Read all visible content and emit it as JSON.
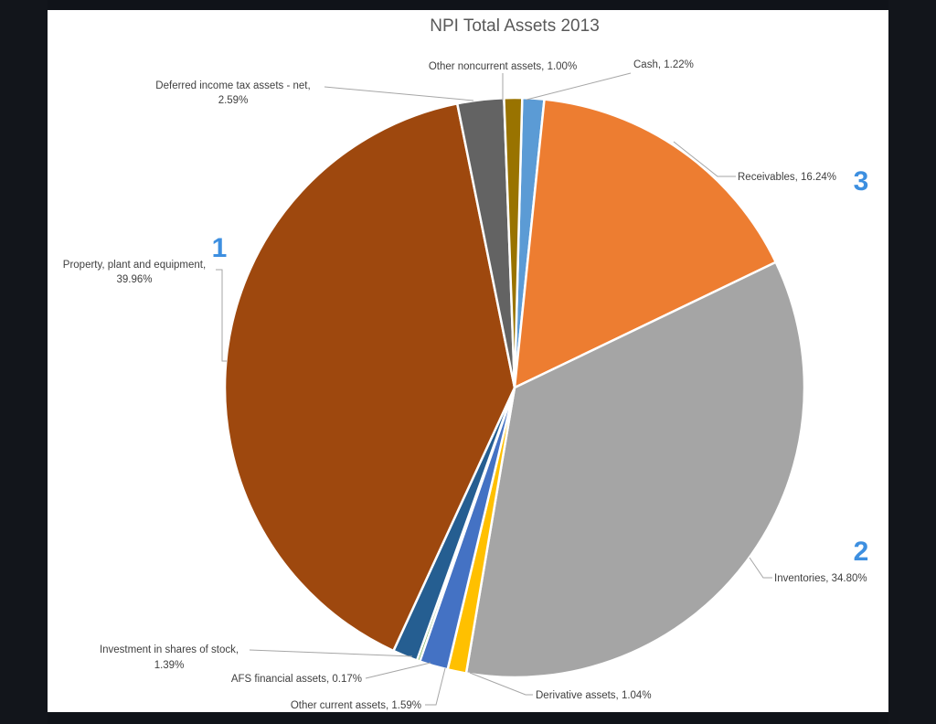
{
  "page": {
    "background": "#101319",
    "slide_background": "#ffffff"
  },
  "chart_data": {
    "type": "pie",
    "title": "NPI Total Assets 2013",
    "start_angle_deg": 1.5,
    "slices": [
      {
        "key": "cash",
        "name": "Cash",
        "value": 1.22,
        "value_label": "1.22%",
        "color": "#5b9bd5"
      },
      {
        "key": "receivables",
        "name": "Receivables",
        "value": 16.24,
        "value_label": "16.24%",
        "color": "#ed7d31"
      },
      {
        "key": "inventories",
        "name": "Inventories",
        "value": 34.8,
        "value_label": "34.80%",
        "color": "#a5a5a5"
      },
      {
        "key": "derivative",
        "name": "Derivative assets",
        "value": 1.04,
        "value_label": "1.04%",
        "color": "#ffc000"
      },
      {
        "key": "other-current",
        "name": "Other current assets",
        "value": 1.59,
        "value_label": "1.59%",
        "color": "#4472c4"
      },
      {
        "key": "afs",
        "name": "AFS financial assets",
        "value": 0.17,
        "value_label": "0.17%",
        "color": "#70ad47"
      },
      {
        "key": "investment",
        "name": "Investment in shares of stock",
        "value": 1.39,
        "value_label": "1.39%",
        "color": "#255e91"
      },
      {
        "key": "ppe",
        "name": "Property, plant and equipment",
        "value": 39.96,
        "value_label": "39.96%",
        "color": "#9e480e"
      },
      {
        "key": "deferred",
        "name": "Deferred income tax assets - net",
        "value": 2.59,
        "value_label": "2.59%",
        "color": "#636363"
      },
      {
        "key": "other-noncurrent",
        "name": "Other noncurrent assets",
        "value": 1.0,
        "value_label": "1.00%",
        "color": "#997300"
      }
    ],
    "labels": {
      "cash": "Cash, 1.22%",
      "receivables": "Receivables, 16.24%",
      "inventories": "Inventories, 34.80%",
      "derivative": "Derivative assets, 1.04%",
      "other_current": "Other current assets, 1.59%",
      "afs": "AFS financial assets, 0.17%",
      "investment_line1": "Investment in shares of stock,",
      "investment_line2": "1.39%",
      "ppe_line1": "Property, plant and equipment,",
      "ppe_line2": "39.96%",
      "deferred_line1": "Deferred income tax assets - net,",
      "deferred_line2": "2.59%",
      "other_noncurrent": "Other noncurrent assets, 1.00%"
    },
    "rank_markers": {
      "ppe": "1",
      "inventories": "2",
      "receivables": "3"
    },
    "marker_color": "#3d8fe0",
    "leader_color": "#a6a6a6"
  }
}
